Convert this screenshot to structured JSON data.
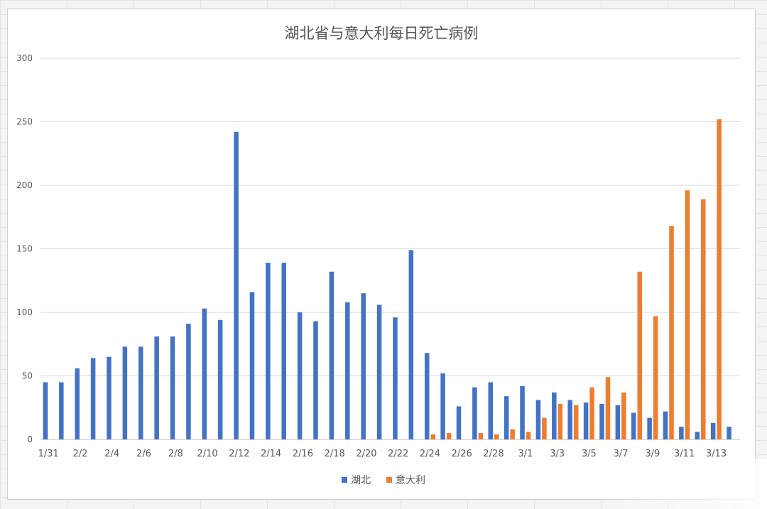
{
  "chart_data": {
    "type": "bar",
    "title": "湖北省与意大利每日死亡病例",
    "xlabel": "",
    "ylabel": "",
    "ylim": [
      0,
      300
    ],
    "yticks": [
      0,
      50,
      100,
      150,
      200,
      250,
      300
    ],
    "grid": true,
    "legend_position": "bottom",
    "categories": [
      "1/31",
      "2/1",
      "2/2",
      "2/3",
      "2/4",
      "2/5",
      "2/6",
      "2/7",
      "2/8",
      "2/9",
      "2/10",
      "2/11",
      "2/12",
      "2/13",
      "2/14",
      "2/15",
      "2/16",
      "2/17",
      "2/18",
      "2/19",
      "2/20",
      "2/21",
      "2/22",
      "2/23",
      "2/24",
      "2/25",
      "2/26",
      "2/27",
      "2/28",
      "2/29",
      "3/1",
      "3/2",
      "3/3",
      "3/4",
      "3/5",
      "3/6",
      "3/7",
      "3/8",
      "3/9",
      "3/10",
      "3/11",
      "3/12",
      "3/13",
      "3/14"
    ],
    "tick_labels": [
      "1/31",
      "",
      "2/2",
      "",
      "2/4",
      "",
      "2/6",
      "",
      "2/8",
      "",
      "2/10",
      "",
      "2/12",
      "",
      "2/14",
      "",
      "2/16",
      "",
      "2/18",
      "",
      "2/20",
      "",
      "2/22",
      "",
      "2/24",
      "",
      "2/26",
      "",
      "2/28",
      "",
      "3/1",
      "",
      "3/3",
      "",
      "3/5",
      "",
      "3/7",
      "",
      "3/9",
      "",
      "3/11",
      "",
      "3/13",
      ""
    ],
    "series": [
      {
        "name": "湖北",
        "color": "#4472c4",
        "values": [
          45,
          45,
          56,
          64,
          65,
          73,
          73,
          81,
          81,
          91,
          103,
          94,
          242,
          116,
          139,
          139,
          100,
          93,
          132,
          108,
          115,
          106,
          96,
          149,
          68,
          52,
          26,
          41,
          45,
          34,
          42,
          31,
          37,
          31,
          29,
          28,
          27,
          21,
          17,
          22,
          10,
          6,
          13,
          10
        ]
      },
      {
        "name": "意大利",
        "color": "#ed7d31",
        "values": [
          0,
          0,
          0,
          0,
          0,
          0,
          0,
          0,
          0,
          0,
          0,
          0,
          0,
          0,
          0,
          0,
          0,
          0,
          0,
          0,
          0,
          0,
          0,
          0,
          4,
          5,
          0,
          5,
          4,
          8,
          6,
          17,
          28,
          27,
          41,
          49,
          37,
          132,
          97,
          168,
          196,
          189,
          252,
          null
        ]
      }
    ]
  }
}
